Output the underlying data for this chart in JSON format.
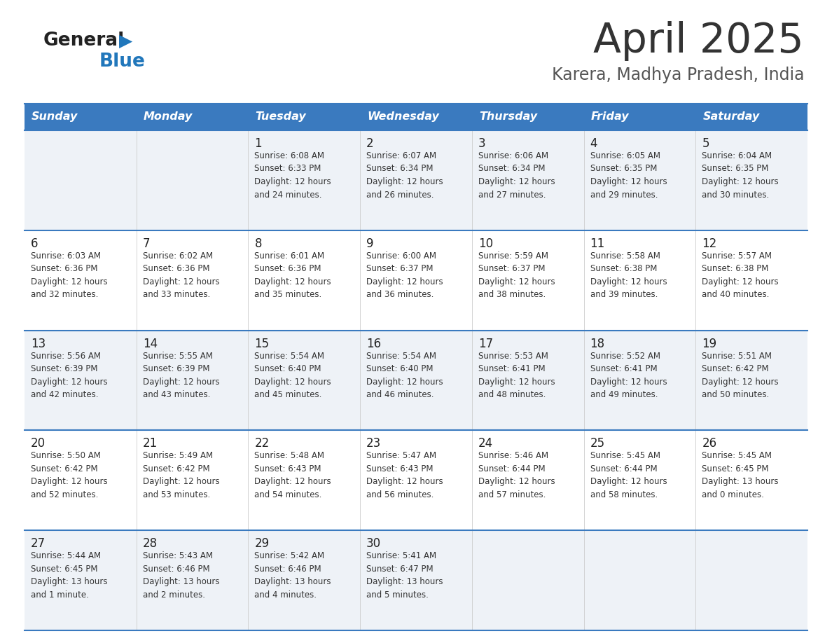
{
  "title": "April 2025",
  "subtitle": "Karera, Madhya Pradesh, India",
  "days_of_week": [
    "Sunday",
    "Monday",
    "Tuesday",
    "Wednesday",
    "Thursday",
    "Friday",
    "Saturday"
  ],
  "header_bg": "#3a7abf",
  "header_text_color": "#ffffff",
  "row_bg_even": "#eef2f7",
  "row_bg_odd": "#ffffff",
  "border_color": "#3a7abf",
  "title_color": "#333333",
  "subtitle_color": "#555555",
  "day_number_color": "#222222",
  "cell_text_color": "#333333",
  "logo_general_color": "#222222",
  "logo_blue_color": "#2177bb",
  "weeks": [
    [
      {
        "day": null,
        "info": null
      },
      {
        "day": null,
        "info": null
      },
      {
        "day": "1",
        "info": "Sunrise: 6:08 AM\nSunset: 6:33 PM\nDaylight: 12 hours\nand 24 minutes."
      },
      {
        "day": "2",
        "info": "Sunrise: 6:07 AM\nSunset: 6:34 PM\nDaylight: 12 hours\nand 26 minutes."
      },
      {
        "day": "3",
        "info": "Sunrise: 6:06 AM\nSunset: 6:34 PM\nDaylight: 12 hours\nand 27 minutes."
      },
      {
        "day": "4",
        "info": "Sunrise: 6:05 AM\nSunset: 6:35 PM\nDaylight: 12 hours\nand 29 minutes."
      },
      {
        "day": "5",
        "info": "Sunrise: 6:04 AM\nSunset: 6:35 PM\nDaylight: 12 hours\nand 30 minutes."
      }
    ],
    [
      {
        "day": "6",
        "info": "Sunrise: 6:03 AM\nSunset: 6:36 PM\nDaylight: 12 hours\nand 32 minutes."
      },
      {
        "day": "7",
        "info": "Sunrise: 6:02 AM\nSunset: 6:36 PM\nDaylight: 12 hours\nand 33 minutes."
      },
      {
        "day": "8",
        "info": "Sunrise: 6:01 AM\nSunset: 6:36 PM\nDaylight: 12 hours\nand 35 minutes."
      },
      {
        "day": "9",
        "info": "Sunrise: 6:00 AM\nSunset: 6:37 PM\nDaylight: 12 hours\nand 36 minutes."
      },
      {
        "day": "10",
        "info": "Sunrise: 5:59 AM\nSunset: 6:37 PM\nDaylight: 12 hours\nand 38 minutes."
      },
      {
        "day": "11",
        "info": "Sunrise: 5:58 AM\nSunset: 6:38 PM\nDaylight: 12 hours\nand 39 minutes."
      },
      {
        "day": "12",
        "info": "Sunrise: 5:57 AM\nSunset: 6:38 PM\nDaylight: 12 hours\nand 40 minutes."
      }
    ],
    [
      {
        "day": "13",
        "info": "Sunrise: 5:56 AM\nSunset: 6:39 PM\nDaylight: 12 hours\nand 42 minutes."
      },
      {
        "day": "14",
        "info": "Sunrise: 5:55 AM\nSunset: 6:39 PM\nDaylight: 12 hours\nand 43 minutes."
      },
      {
        "day": "15",
        "info": "Sunrise: 5:54 AM\nSunset: 6:40 PM\nDaylight: 12 hours\nand 45 minutes."
      },
      {
        "day": "16",
        "info": "Sunrise: 5:54 AM\nSunset: 6:40 PM\nDaylight: 12 hours\nand 46 minutes."
      },
      {
        "day": "17",
        "info": "Sunrise: 5:53 AM\nSunset: 6:41 PM\nDaylight: 12 hours\nand 48 minutes."
      },
      {
        "day": "18",
        "info": "Sunrise: 5:52 AM\nSunset: 6:41 PM\nDaylight: 12 hours\nand 49 minutes."
      },
      {
        "day": "19",
        "info": "Sunrise: 5:51 AM\nSunset: 6:42 PM\nDaylight: 12 hours\nand 50 minutes."
      }
    ],
    [
      {
        "day": "20",
        "info": "Sunrise: 5:50 AM\nSunset: 6:42 PM\nDaylight: 12 hours\nand 52 minutes."
      },
      {
        "day": "21",
        "info": "Sunrise: 5:49 AM\nSunset: 6:42 PM\nDaylight: 12 hours\nand 53 minutes."
      },
      {
        "day": "22",
        "info": "Sunrise: 5:48 AM\nSunset: 6:43 PM\nDaylight: 12 hours\nand 54 minutes."
      },
      {
        "day": "23",
        "info": "Sunrise: 5:47 AM\nSunset: 6:43 PM\nDaylight: 12 hours\nand 56 minutes."
      },
      {
        "day": "24",
        "info": "Sunrise: 5:46 AM\nSunset: 6:44 PM\nDaylight: 12 hours\nand 57 minutes."
      },
      {
        "day": "25",
        "info": "Sunrise: 5:45 AM\nSunset: 6:44 PM\nDaylight: 12 hours\nand 58 minutes."
      },
      {
        "day": "26",
        "info": "Sunrise: 5:45 AM\nSunset: 6:45 PM\nDaylight: 13 hours\nand 0 minutes."
      }
    ],
    [
      {
        "day": "27",
        "info": "Sunrise: 5:44 AM\nSunset: 6:45 PM\nDaylight: 13 hours\nand 1 minute."
      },
      {
        "day": "28",
        "info": "Sunrise: 5:43 AM\nSunset: 6:46 PM\nDaylight: 13 hours\nand 2 minutes."
      },
      {
        "day": "29",
        "info": "Sunrise: 5:42 AM\nSunset: 6:46 PM\nDaylight: 13 hours\nand 4 minutes."
      },
      {
        "day": "30",
        "info": "Sunrise: 5:41 AM\nSunset: 6:47 PM\nDaylight: 13 hours\nand 5 minutes."
      },
      {
        "day": null,
        "info": null
      },
      {
        "day": null,
        "info": null
      },
      {
        "day": null,
        "info": null
      }
    ]
  ]
}
